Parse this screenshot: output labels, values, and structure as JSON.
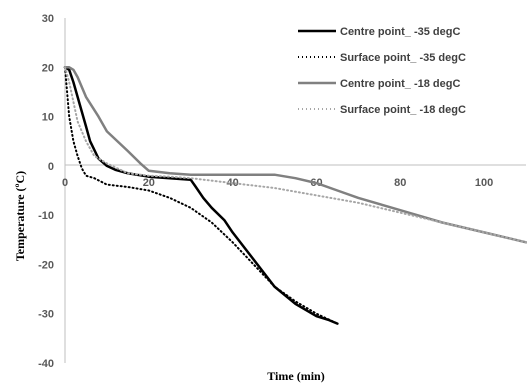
{
  "chart_data": {
    "type": "line",
    "title": "",
    "xlabel": "Time (min)",
    "ylabel": "Temperature (ºC)",
    "xlim": [
      0,
      110
    ],
    "ylim": [
      -40,
      30
    ],
    "xticks": [
      0,
      20,
      40,
      60,
      80,
      100
    ],
    "yticks": [
      30,
      20,
      10,
      0,
      -10,
      -20,
      -30,
      -40
    ],
    "grid": false,
    "legend": "top-right",
    "series": [
      {
        "name": "Centre point_ -35 degC",
        "color": "#000000",
        "style": "solid",
        "x": [
          0,
          1,
          2,
          3,
          4,
          5,
          6,
          8,
          10,
          12,
          15,
          20,
          25,
          30,
          31,
          33,
          35,
          38,
          40,
          45,
          50,
          55,
          60,
          63,
          65
        ],
        "y": [
          20,
          19.5,
          17,
          14,
          11,
          8,
          5,
          1.5,
          0,
          -0.8,
          -1.5,
          -2.2,
          -2.5,
          -2.8,
          -4,
          -6.5,
          -8.5,
          -11,
          -13.5,
          -19,
          -24.5,
          -28,
          -30.5,
          -31.3,
          -32
        ]
      },
      {
        "name": "Surface point_ -35 degC",
        "color": "#000000",
        "style": "dotted",
        "x": [
          0,
          1,
          2,
          3,
          4,
          5,
          7,
          10,
          15,
          20,
          25,
          30,
          35,
          40,
          45,
          50,
          55,
          60,
          65
        ],
        "y": [
          20,
          10,
          5,
          2,
          -0.5,
          -2,
          -2.5,
          -3.8,
          -4.3,
          -5,
          -6.5,
          -8.5,
          -11.5,
          -15.5,
          -20,
          -24.5,
          -27.5,
          -30,
          -32
        ]
      },
      {
        "name": "Centre point_ -18 degC",
        "color": "#808080",
        "style": "solid",
        "x": [
          0,
          1,
          2,
          3,
          5,
          8,
          10,
          15,
          18,
          20,
          25,
          30,
          40,
          50,
          55,
          60,
          65,
          70,
          80,
          90,
          100,
          105,
          110
        ],
        "y": [
          20,
          20,
          19.5,
          18,
          14,
          10,
          7,
          3,
          0.5,
          -1,
          -1.5,
          -1.8,
          -1.8,
          -1.8,
          -2.5,
          -3.5,
          -5,
          -6.5,
          -9,
          -11.5,
          -13.5,
          -14.5,
          -15.5
        ]
      },
      {
        "name": "Surface point_ -18 degC",
        "color": "#a6a6a6",
        "style": "dotted",
        "x": [
          0,
          1,
          2,
          3,
          5,
          7,
          10,
          15,
          20,
          25,
          30,
          40,
          50,
          60,
          70,
          80,
          90,
          100,
          105,
          110
        ],
        "y": [
          20,
          17,
          13,
          9,
          5,
          2,
          0.5,
          -1.5,
          -2,
          -2.2,
          -2.5,
          -3.5,
          -4.5,
          -6,
          -7.5,
          -9.5,
          -11.5,
          -13.5,
          -14.5,
          -15.5
        ]
      }
    ]
  }
}
